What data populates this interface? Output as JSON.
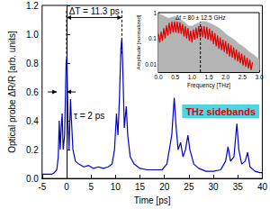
{
  "chart_data": [
    {
      "type": "line",
      "xlabel": "Time [ps]",
      "ylabel": "Optical probe ΔR/R [arb. units]",
      "xlim": [
        -5,
        40
      ],
      "xticks": [
        -5,
        0,
        5,
        10,
        15,
        20,
        25,
        30,
        35,
        40
      ],
      "ylim": [
        0,
        1.2
      ],
      "yticks": [
        {
          "value": 0,
          "label": "0.0"
        },
        0.2,
        0.4,
        0.6,
        0.8,
        {
          "value": 1,
          "label": "1.0"
        },
        1.2
      ],
      "grid": false,
      "series": [
        {
          "color": "#0000cc",
          "x": [
            -5,
            -4,
            -3,
            -2.5,
            -2,
            -1.7,
            -1.5,
            -1.3,
            -1.1,
            -0.9,
            -0.7,
            -0.4,
            -0.1,
            0.05,
            0.3,
            0.5,
            0.8,
            1.0,
            1.3,
            1.8,
            2.5,
            3.5,
            4.5,
            5.5,
            6.5,
            7.5,
            8.5,
            9.3,
            9.8,
            10.2,
            10.5,
            10.8,
            11.1,
            11.3,
            11.5,
            11.8,
            12.2,
            12.5,
            13,
            13.8,
            15,
            16.5,
            18,
            19.5,
            20.5,
            21,
            21.5,
            22,
            22.4,
            22.8,
            23.3,
            23.8,
            24.3,
            24.8,
            25.2,
            26,
            27,
            28.5,
            30,
            31.5,
            32.5,
            33,
            33.5,
            34.2,
            34.8,
            35.2,
            35.8,
            36.5,
            37,
            37.5,
            38.5,
            39.5,
            40
          ],
          "values": [
            0.03,
            0.03,
            0.03,
            0.04,
            0.06,
            0.15,
            0.4,
            0.2,
            0.35,
            0.45,
            0.2,
            0.3,
            0.8,
            0.85,
            0.4,
            0.2,
            0.55,
            0.4,
            0.2,
            0.12,
            0.1,
            0.08,
            0.09,
            0.07,
            0.08,
            0.07,
            0.08,
            0.1,
            0.2,
            0.45,
            0.3,
            0.55,
            0.9,
            0.97,
            0.75,
            0.35,
            0.5,
            0.3,
            0.15,
            0.1,
            0.07,
            0.06,
            0.06,
            0.06,
            0.1,
            0.2,
            0.3,
            0.56,
            0.35,
            0.2,
            0.25,
            0.15,
            0.2,
            0.3,
            0.2,
            0.1,
            0.07,
            0.05,
            0.05,
            0.06,
            0.12,
            0.22,
            0.12,
            0.15,
            0.38,
            0.2,
            0.1,
            0.12,
            0.18,
            0.08,
            0.05,
            0.04,
            0.04
          ]
        }
      ],
      "annotations": [
        {
          "text": "ΔT = 11.3 ps",
          "from": 0,
          "to": 11.3
        },
        {
          "text": "τ = 2 ps",
          "from": -2,
          "to": 0
        },
        {
          "text": "THz sidebands"
        }
      ]
    },
    {
      "type": "line",
      "xlabel": "Frequency [THz]",
      "ylabel": "Amplitude [normalized]",
      "log": "y",
      "xlim": [
        0,
        3
      ],
      "xticks": [
        {
          "value": 0,
          "label": "0.0"
        },
        0.5,
        {
          "value": 1,
          "label": "1.0"
        },
        1.5,
        {
          "value": 2,
          "label": "2.0"
        },
        2.5,
        {
          "value": 3,
          "label": "3.0"
        }
      ],
      "ylim": [
        0.005,
        1
      ],
      "yticks": [
        0.01,
        0.1,
        1
      ],
      "grid": false,
      "series": [
        {
          "type": "area",
          "color": "#b4b4b4",
          "x": [
            0,
            0.1,
            0.2,
            0.3,
            0.4,
            0.5,
            0.6,
            0.7,
            0.8,
            0.9,
            1.0,
            1.1,
            1.2,
            1.3,
            1.4,
            1.5,
            1.6,
            1.7,
            1.8,
            1.9,
            2.0,
            2.1,
            2.2,
            2.3,
            2.4,
            2.5,
            2.6,
            2.7,
            2.8,
            2.9,
            3.0
          ],
          "values": [
            0.9,
            0.8,
            0.7,
            0.6,
            0.65,
            0.7,
            0.6,
            0.5,
            0.4,
            0.3,
            0.3,
            0.35,
            0.4,
            0.45,
            0.45,
            0.4,
            0.35,
            0.3,
            0.25,
            0.2,
            0.15,
            0.12,
            0.1,
            0.08,
            0.06,
            0.05,
            0.04,
            0.03,
            0.025,
            0.02,
            0.015
          ]
        },
        {
          "type": "line",
          "color": "#e00000",
          "x": [
            0.0,
            0.04,
            0.08,
            0.12,
            0.16,
            0.2,
            0.24,
            0.28,
            0.32,
            0.36,
            0.4,
            0.44,
            0.48,
            0.52,
            0.56,
            0.6,
            0.64,
            0.68,
            0.72,
            0.76,
            0.8,
            0.84,
            0.88,
            0.92,
            0.96,
            1.0,
            1.04,
            1.08,
            1.12,
            1.16,
            1.2,
            1.24,
            1.28,
            1.32,
            1.36,
            1.4,
            1.44,
            1.48,
            1.52,
            1.56,
            1.6,
            1.64,
            1.68,
            1.72,
            1.76,
            1.8,
            1.84,
            1.88,
            1.92,
            1.96,
            2.0,
            2.04,
            2.08,
            2.12,
            2.16,
            2.2,
            2.24,
            2.28,
            2.32,
            2.36,
            2.4,
            2.44,
            2.48,
            2.52,
            2.56,
            2.6,
            2.64,
            2.68,
            2.72,
            2.76,
            2.8
          ],
          "values": [
            0.15,
            0.07,
            0.18,
            0.08,
            0.25,
            0.1,
            0.32,
            0.13,
            0.4,
            0.15,
            0.45,
            0.17,
            0.45,
            0.17,
            0.45,
            0.16,
            0.42,
            0.15,
            0.36,
            0.12,
            0.3,
            0.1,
            0.25,
            0.08,
            0.2,
            0.07,
            0.22,
            0.09,
            0.26,
            0.1,
            0.3,
            0.11,
            0.3,
            0.11,
            0.3,
            0.1,
            0.28,
            0.09,
            0.24,
            0.08,
            0.2,
            0.06,
            0.16,
            0.05,
            0.13,
            0.04,
            0.11,
            0.035,
            0.09,
            0.03,
            0.08,
            0.025,
            0.065,
            0.02,
            0.055,
            0.018,
            0.045,
            0.015,
            0.038,
            0.013,
            0.03,
            0.011,
            0.026,
            0.009,
            0.022,
            0.008,
            0.018,
            0.007,
            0.015,
            0.006,
            0.012
          ]
        }
      ],
      "annotations": [
        {
          "text": "Δf = 80 ± 12.5 GHz",
          "x": 1.25
        }
      ]
    }
  ]
}
